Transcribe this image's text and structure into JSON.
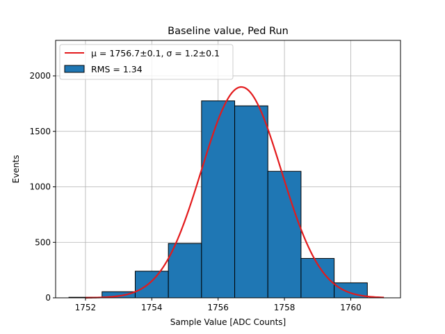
{
  "chart_data": {
    "type": "bar",
    "title": "Baseline value, Ped Run",
    "xlabel": "Sample Value [ADC Counts]",
    "ylabel": "Events",
    "xlim": [
      1751.1,
      1761.5
    ],
    "ylim": [
      0,
      2320
    ],
    "xticks": [
      1752,
      1754,
      1756,
      1758,
      1760
    ],
    "yticks": [
      0,
      500,
      1000,
      1500,
      2000
    ],
    "grid": true,
    "legend_position": "top-left",
    "histogram": {
      "label": "RMS = 1.34",
      "color": "#1f77b4",
      "edgecolor": "#000000",
      "bins": [
        {
          "x0": 1751.5,
          "x1": 1752.5,
          "count": 5
        },
        {
          "x0": 1752.5,
          "x1": 1753.5,
          "count": 55
        },
        {
          "x0": 1753.5,
          "x1": 1754.5,
          "count": 240
        },
        {
          "x0": 1754.5,
          "x1": 1755.5,
          "count": 490
        },
        {
          "x0": 1755.5,
          "x1": 1756.5,
          "count": 1775
        },
        {
          "x0": 1756.5,
          "x1": 1757.5,
          "count": 1730
        },
        {
          "x0": 1757.5,
          "x1": 1758.5,
          "count": 1140
        },
        {
          "x0": 1758.5,
          "x1": 1759.5,
          "count": 355
        },
        {
          "x0": 1759.5,
          "x1": 1760.5,
          "count": 135
        }
      ]
    },
    "fit": {
      "label": "μ = 1756.7±0.1, σ = 1.2±0.1",
      "color": "#e31a1c",
      "mu": 1756.7,
      "sigma": 1.2,
      "amplitude": 1900,
      "x_range": [
        1752,
        1761
      ]
    }
  }
}
